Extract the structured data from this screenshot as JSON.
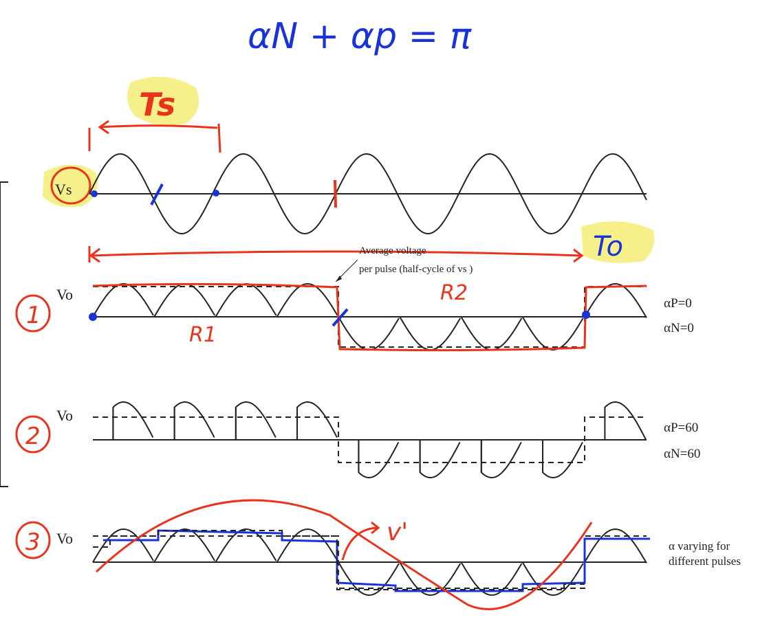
{
  "title_equation": "αN + αp = π",
  "annotations": {
    "ts": "Ts",
    "to": "To",
    "r1": "R1",
    "r2": "R2",
    "v_prime": "v'",
    "case_1": "1",
    "case_2": "2",
    "case_3": "3"
  },
  "labels": {
    "vs": "Vs",
    "vo_1": "Vo",
    "vo_2": "Vo",
    "vo_3": "Vo",
    "avg_line1": "Average voltage",
    "avg_line2": "per pulse (half-cycle of vs )",
    "alpha_p_1": "αP=0",
    "alpha_n_1": "αN=0",
    "alpha_p_2": "αP=60",
    "alpha_n_2": "αN=60",
    "alpha_var_1": "α varying for",
    "alpha_var_2": "different pulses"
  },
  "colors": {
    "ink": "#222222",
    "red": "#e8341c",
    "blue": "#1a33d6",
    "highlight": "#f6f08a"
  }
}
